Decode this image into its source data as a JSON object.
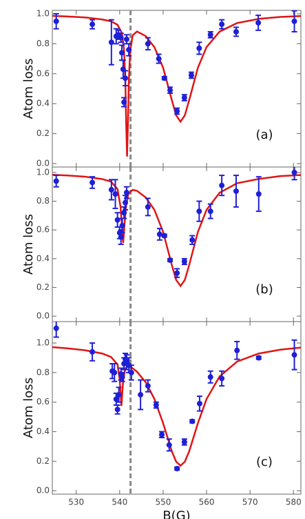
{
  "chart_data": [
    {
      "type": "scatter",
      "ylabel": "Atom loss",
      "annotation": "(a)",
      "xlim": [
        524.5,
        581.7
      ],
      "ylim": [
        -0.023,
        1.023
      ],
      "yticks": [
        {
          "value": 0,
          "label": "0.0"
        },
        0.2,
        0.4,
        0.6,
        0.8,
        {
          "value": 1,
          "label": "1.0"
        }
      ],
      "vline": 542.5,
      "color": "#1f1fd6",
      "x": [
        525.4,
        533.7,
        538.1,
        539.2,
        539.7,
        540.3,
        540.5,
        540.8,
        541.0,
        541.3,
        541.6,
        542.1,
        546.5,
        549.0,
        550.3,
        551.6,
        553.2,
        554.9,
        556.5,
        558.3,
        560.9,
        563.5,
        566.8,
        571.9,
        580.2
      ],
      "values": [
        0.95,
        0.93,
        0.81,
        0.85,
        0.86,
        0.84,
        0.74,
        0.63,
        0.41,
        0.57,
        0.83,
        0.76,
        0.8,
        0.7,
        0.57,
        0.49,
        0.35,
        0.44,
        0.59,
        0.77,
        0.86,
        0.93,
        0.88,
        0.94,
        0.95
      ],
      "errors": [
        0.05,
        0.03,
        0.15,
        0.05,
        0.03,
        0.03,
        0.05,
        0.06,
        0.03,
        0.05,
        0.03,
        0.04,
        0.04,
        0.03,
        0.01,
        0.02,
        0.02,
        0.02,
        0.02,
        0.04,
        0.02,
        0.03,
        0.03,
        0.05,
        0.07
      ],
      "fit": {
        "color": "#e01414",
        "x": [
          524.5,
          528,
          532,
          536,
          538,
          539.5,
          540.5,
          541,
          541.3,
          541.5,
          541.7,
          541.9,
          542.1,
          542.4,
          543,
          544,
          546,
          548,
          550,
          552,
          553,
          554,
          555,
          556,
          558,
          560,
          563,
          567,
          572,
          577,
          581.7
        ],
        "values": [
          0.986,
          0.982,
          0.976,
          0.962,
          0.95,
          0.927,
          0.872,
          0.76,
          0.55,
          0.265,
          0.047,
          0.264,
          0.545,
          0.748,
          0.857,
          0.882,
          0.851,
          0.777,
          0.64,
          0.424,
          0.322,
          0.28,
          0.322,
          0.424,
          0.64,
          0.778,
          0.881,
          0.938,
          0.966,
          0.979,
          0.985
        ]
      }
    },
    {
      "type": "scatter",
      "ylabel": "Atom loss",
      "annotation": "(b)",
      "xlim": [
        524.5,
        581.7
      ],
      "ylim": [
        -0.038,
        1.038
      ],
      "yticks": [
        {
          "value": 0,
          "label": "0.0"
        },
        0.2,
        0.4,
        0.6,
        0.8,
        {
          "value": 1,
          "label": "1.0"
        }
      ],
      "vline": 542.5,
      "color": "#1f1fd6",
      "x": [
        525.4,
        533.7,
        538.1,
        539.0,
        539.5,
        540.0,
        540.3,
        540.6,
        541.0,
        541.3,
        541.6,
        546.5,
        549.2,
        550.3,
        551.6,
        553.2,
        554.9,
        556.7,
        558.3,
        560.9,
        563.5,
        566.8,
        572.0,
        580.2
      ],
      "values": [
        0.94,
        0.93,
        0.88,
        0.85,
        0.67,
        0.58,
        0.55,
        0.63,
        0.72,
        0.79,
        0.86,
        0.76,
        0.57,
        0.56,
        0.39,
        0.3,
        0.38,
        0.53,
        0.73,
        0.73,
        0.91,
        0.87,
        0.85,
        1.0
      ],
      "errors": [
        0.04,
        0.04,
        0.07,
        0.1,
        0.05,
        0.04,
        0.05,
        0.05,
        0.04,
        0.05,
        0.04,
        0.06,
        0.04,
        0.01,
        0.01,
        0.03,
        0.02,
        0.03,
        0.07,
        0.05,
        0.07,
        0.11,
        0.12,
        0.05
      ],
      "fit": {
        "color": "#e01414",
        "x": [
          524.5,
          528,
          532,
          536,
          538,
          539.5,
          540.2,
          540.8,
          541.4,
          542,
          543,
          544,
          546,
          548,
          550,
          552,
          553,
          554,
          555,
          556,
          558,
          560,
          563,
          567,
          572,
          577,
          581.7
        ],
        "values": [
          0.984,
          0.979,
          0.971,
          0.954,
          0.936,
          0.885,
          0.761,
          0.51,
          0.752,
          0.853,
          0.879,
          0.872,
          0.826,
          0.74,
          0.586,
          0.356,
          0.252,
          0.21,
          0.252,
          0.356,
          0.586,
          0.74,
          0.859,
          0.925,
          0.955,
          0.975,
          0.982
        ]
      }
    },
    {
      "type": "scatter",
      "ylabel": "Atom loss",
      "annotation": "(c)",
      "xlabel": "B(G)",
      "xlim": [
        524.5,
        581.7
      ],
      "ylim": [
        -0.023,
        1.145
      ],
      "xticks": [
        530,
        540,
        550,
        560,
        570,
        580
      ],
      "yticks": [
        {
          "value": 0,
          "label": "0.0"
        },
        0.2,
        0.4,
        0.6,
        0.8,
        {
          "value": 1,
          "label": "1.0"
        }
      ],
      "vline": 542.5,
      "color": "#1f1fd6",
      "x": [
        525.4,
        533.7,
        538.3,
        538.8,
        539.2,
        539.5,
        539.8,
        540.3,
        540.6,
        541.0,
        541.3,
        541.6,
        542.1,
        542.7,
        544.8,
        546.5,
        548.4,
        549.7,
        551.4,
        553.2,
        554.9,
        556.7,
        558.4,
        560.9,
        563.5,
        567.0,
        572.0,
        580.2
      ],
      "values": [
        1.1,
        0.94,
        0.81,
        0.8,
        0.62,
        0.55,
        0.65,
        0.79,
        0.77,
        0.86,
        0.89,
        0.87,
        0.85,
        0.8,
        0.65,
        0.71,
        0.58,
        0.38,
        0.31,
        0.15,
        0.33,
        0.47,
        0.59,
        0.77,
        0.76,
        0.95,
        0.9,
        0.92
      ],
      "errors": [
        0.06,
        0.06,
        0.05,
        0.06,
        0.04,
        0.03,
        0.05,
        0.04,
        0.03,
        0.04,
        0.04,
        0.05,
        0.05,
        0.05,
        0.1,
        0.04,
        0.02,
        0.02,
        0.04,
        0.01,
        0.02,
        0.01,
        0.05,
        0.04,
        0.05,
        0.06,
        0.01,
        0.1
      ],
      "fit": {
        "color": "#e01414",
        "x": [
          524.5,
          528,
          532,
          536,
          538,
          539.5,
          540,
          540.4,
          540.8,
          541.3,
          542,
          543,
          544,
          546,
          548,
          550,
          552,
          553,
          554,
          555,
          556,
          558,
          560,
          563,
          567,
          572,
          577,
          581.7
        ],
        "values": [
          0.972,
          0.964,
          0.951,
          0.929,
          0.906,
          0.855,
          0.754,
          0.574,
          0.744,
          0.829,
          0.842,
          0.829,
          0.805,
          0.734,
          0.621,
          0.457,
          0.267,
          0.197,
          0.17,
          0.197,
          0.267,
          0.457,
          0.621,
          0.774,
          0.874,
          0.929,
          0.955,
          0.969
        ]
      }
    }
  ]
}
